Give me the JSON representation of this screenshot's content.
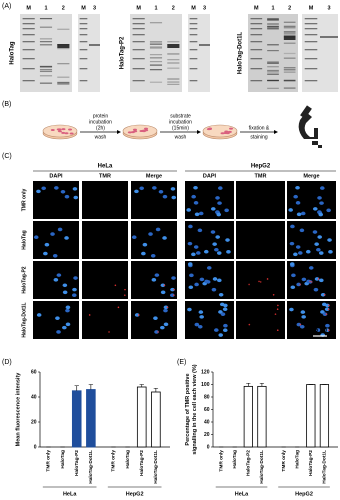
{
  "panel_a": {
    "label": "(A)",
    "gels": [
      {
        "name": "HaloTag",
        "lanes": [
          "M",
          "1",
          "2"
        ],
        "lanes_2": [
          "M",
          "3"
        ]
      },
      {
        "name": "HaloTag-P2",
        "lanes": [
          "M",
          "1",
          "2"
        ],
        "lanes_2": [
          "M",
          "3"
        ]
      },
      {
        "name": "HaloTag-Dot1L",
        "lanes": [
          "M",
          "1",
          "2"
        ],
        "lanes_2": [
          "M",
          "3"
        ]
      }
    ]
  },
  "panel_b": {
    "label": "(B)",
    "steps": [
      {
        "above": [
          "protein",
          "incubation",
          "(2h)"
        ],
        "below": [
          "wash"
        ]
      },
      {
        "above": [
          "substrate",
          "incubation",
          "(15min)"
        ],
        "below": [
          "wash"
        ]
      },
      {
        "above": [
          "fixation &"
        ],
        "below": [
          "staining"
        ]
      }
    ]
  },
  "panel_c": {
    "label": "(C)",
    "cell_lines": [
      "HeLa",
      "HepG2"
    ],
    "channels": [
      "DAPI",
      "TMR",
      "Merge"
    ],
    "rows": [
      "TMR only",
      "HaloTag",
      "HaloTag-P2",
      "HaloTag-Dot1L"
    ],
    "scale_bar": "25 μm"
  },
  "chart_data": [
    {
      "type": "bar",
      "label": "(D)",
      "y_label": [
        "Mean fluorescence intensity"
      ],
      "ylim": [
        0,
        60
      ],
      "yticks": [
        0,
        20,
        40,
        60
      ],
      "groups": [
        {
          "name": "HeLa",
          "color": "#1f4e9c",
          "edge_color": "#1f4e9c",
          "categories": [
            "TMR only",
            "HaloTag",
            "HaloTag-P2",
            "HaloTag-Dot1L"
          ],
          "values": [
            0,
            0,
            45,
            46
          ],
          "errors": [
            0,
            0,
            4,
            4
          ]
        },
        {
          "name": "HepG2",
          "color": "#ffffff",
          "edge_color": "#000000",
          "categories": [
            "TMR only",
            "HaloTag",
            "HaloTag-P2",
            "HaloTag-Dot1L"
          ],
          "values": [
            0,
            0,
            48,
            44
          ],
          "errors": [
            0,
            0,
            2,
            3
          ]
        }
      ]
    },
    {
      "type": "bar",
      "label": "(E)",
      "y_label": [
        "Percentage of TMR positive",
        "signalling in the cell each view (%)"
      ],
      "ylim": [
        0,
        120
      ],
      "yticks": [
        0,
        20,
        40,
        60,
        80,
        100,
        120
      ],
      "groups": [
        {
          "name": "HeLa",
          "color": "#ffffff",
          "edge_color": "#000000",
          "categories": [
            "TMR only",
            "HaloTag",
            "HaloTag-P2",
            "HaloTag-Dot1L"
          ],
          "values": [
            0,
            0,
            97,
            97
          ],
          "errors": [
            0,
            0,
            5,
            5
          ]
        },
        {
          "name": "HepG2",
          "color": "#ffffff",
          "edge_color": "#000000",
          "categories": [
            "TMR only",
            "HaloTag",
            "HaloTag-P2",
            "HaloTag-Dot1L"
          ],
          "values": [
            0,
            0,
            100,
            100
          ],
          "errors": [
            0,
            0,
            0,
            0
          ]
        }
      ]
    }
  ]
}
